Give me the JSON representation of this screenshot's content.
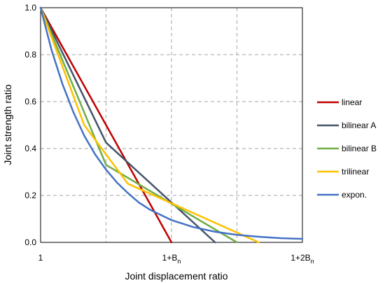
{
  "chart_data": {
    "type": "line",
    "title": "",
    "xlabel": "Joint displacement ratio",
    "ylabel": "Joint strength ratio",
    "xlim": [
      0,
      1.2
    ],
    "ylim": [
      0,
      1.0
    ],
    "x_ticks": [
      {
        "value": 0,
        "label": "1",
        "sub": ""
      },
      {
        "value": 0.6,
        "label": "1+B",
        "sub": "n"
      },
      {
        "value": 1.2,
        "label": "1+2B",
        "sub": "n"
      }
    ],
    "x_grid": [
      0.3,
      0.6,
      0.9
    ],
    "y_ticks": [
      {
        "value": 0.0,
        "label": "0.0"
      },
      {
        "value": 0.2,
        "label": "0.2"
      },
      {
        "value": 0.4,
        "label": "0.4"
      },
      {
        "value": 0.6,
        "label": "0.6"
      },
      {
        "value": 0.8,
        "label": "0.8"
      },
      {
        "value": 1.0,
        "label": "1.0"
      }
    ],
    "grid": true,
    "legend_position": "right",
    "series": [
      {
        "name": "linear",
        "color": "#c00000",
        "points": [
          [
            0,
            1.0
          ],
          [
            0.6,
            0.0
          ]
        ]
      },
      {
        "name": "bilinear A",
        "color": "#44546a",
        "points": [
          [
            0,
            1.0
          ],
          [
            0.3,
            0.425
          ],
          [
            0.8,
            0.0
          ]
        ]
      },
      {
        "name": "bilinear B",
        "color": "#70ad47",
        "points": [
          [
            0,
            1.0
          ],
          [
            0.3,
            0.33
          ],
          [
            0.9,
            0.0
          ]
        ]
      },
      {
        "name": "trilinear",
        "color": "#ffc000",
        "points": [
          [
            0,
            1.0
          ],
          [
            0.2,
            0.5
          ],
          [
            0.4,
            0.25
          ],
          [
            1.0,
            0.0
          ]
        ]
      },
      {
        "name": "expon.",
        "color": "#4472c4",
        "points": [
          [
            0,
            1.0
          ],
          [
            0.05,
            0.82
          ],
          [
            0.1,
            0.675
          ],
          [
            0.15,
            0.555
          ],
          [
            0.2,
            0.455
          ],
          [
            0.25,
            0.375
          ],
          [
            0.3,
            0.31
          ],
          [
            0.35,
            0.255
          ],
          [
            0.4,
            0.21
          ],
          [
            0.45,
            0.17
          ],
          [
            0.5,
            0.14
          ],
          [
            0.6,
            0.095
          ],
          [
            0.7,
            0.065
          ],
          [
            0.8,
            0.045
          ],
          [
            0.9,
            0.032
          ],
          [
            1.0,
            0.024
          ],
          [
            1.1,
            0.018
          ],
          [
            1.2,
            0.015
          ]
        ]
      }
    ]
  }
}
